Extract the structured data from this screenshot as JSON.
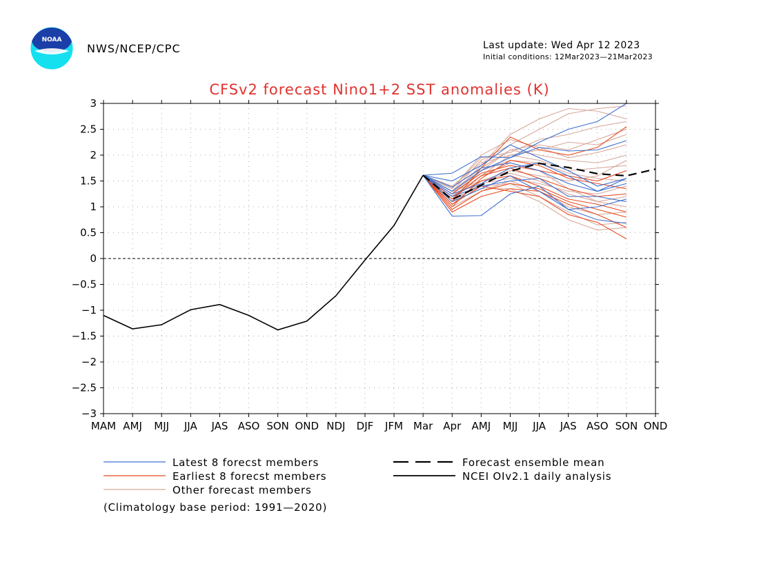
{
  "header": {
    "org": "NWS/NCEP/CPC",
    "last_update": "Last update: Wed Apr 12 2023",
    "initial_conditions": "Initial conditions: 12Mar2023—21Mar2023",
    "logo_text": "NOAA"
  },
  "colors": {
    "title": "#e0322e",
    "latest": "#3c6fd0",
    "earliest": "#e84a1e",
    "other": "#d6a79a",
    "observed": "#000000",
    "mean": "#000000",
    "logo_blue": "#1b3fa8",
    "logo_cyan": "#14e0f0"
  },
  "chart_data": {
    "type": "line",
    "title": "CFSv2 forecast Nino1+2 SST anomalies (K)",
    "xlabel": "",
    "ylabel": "",
    "categories": [
      "MAM",
      "AMJ",
      "MJJ",
      "JJA",
      "JAS",
      "ASO",
      "SON",
      "OND",
      "NDJ",
      "DJF",
      "JFM",
      "Mar",
      "Apr",
      "AMJ",
      "MJJ",
      "JJA",
      "JAS",
      "ASO",
      "SON",
      "OND"
    ],
    "ylim": [
      -3,
      3
    ],
    "yticks": [
      3,
      2.5,
      2,
      1.5,
      1,
      0.5,
      0,
      -0.5,
      -1,
      -1.5,
      -2,
      -2.5,
      -3
    ],
    "ytick_labels": [
      "3",
      "2.5",
      "2",
      "1.5",
      "1",
      "0.5",
      "0",
      "−0.5",
      "−1",
      "−1.5",
      "−2",
      "−2.5",
      "−3"
    ],
    "grid": true,
    "zero_line": true,
    "observed": {
      "name": "NCEI OIv2.1 daily analysis",
      "values": [
        -1.1,
        -1.36,
        -1.28,
        -0.99,
        -0.89,
        -1.1,
        -1.38,
        -1.21,
        -0.72,
        -0.03,
        0.64,
        1.61
      ]
    },
    "mean": {
      "name": "Forecast ensemble mean",
      "values": [
        1.61,
        1.14,
        1.42,
        1.69,
        1.84,
        1.76,
        1.64,
        1.6,
        1.73
      ]
    },
    "members": {
      "latest": [
        [
          1.61,
          1.65,
          1.97,
          1.95,
          2.25,
          2.5,
          2.65,
          3.0
        ],
        [
          1.61,
          1.3,
          1.7,
          1.95,
          2.15,
          2.08,
          2.1,
          2.28
        ],
        [
          1.61,
          1.25,
          1.45,
          1.75,
          1.85,
          1.6,
          1.3,
          1.55
        ],
        [
          1.61,
          1.2,
          1.4,
          1.5,
          1.55,
          1.2,
          1.2,
          1.1
        ],
        [
          1.61,
          1.1,
          1.35,
          1.6,
          1.3,
          0.95,
          1.0,
          1.15
        ],
        [
          1.61,
          0.82,
          0.83,
          1.25,
          1.4,
          0.95,
          0.75,
          0.68
        ],
        [
          1.61,
          1.38,
          1.75,
          1.85,
          1.7,
          1.45,
          1.3,
          1.45
        ],
        [
          1.61,
          1.5,
          1.8,
          2.2,
          1.95,
          1.7,
          1.4,
          1.55
        ]
      ],
      "earliest": [
        [
          1.61,
          1.1,
          1.75,
          2.35,
          2.1,
          2.0,
          2.15,
          2.55
        ],
        [
          1.61,
          1.0,
          1.55,
          1.9,
          1.8,
          1.55,
          1.45,
          1.35
        ],
        [
          1.61,
          1.15,
          1.6,
          1.75,
          1.55,
          1.35,
          1.2,
          1.25
        ],
        [
          1.61,
          0.95,
          1.3,
          1.45,
          1.35,
          1.1,
          0.95,
          0.8
        ],
        [
          1.61,
          1.05,
          1.4,
          1.3,
          1.2,
          0.85,
          0.7,
          0.38
        ],
        [
          1.61,
          1.2,
          1.5,
          1.6,
          1.4,
          1.15,
          1.05,
          0.9
        ],
        [
          1.61,
          0.9,
          1.2,
          1.35,
          1.3,
          1.05,
          0.85,
          0.6
        ],
        [
          1.61,
          1.25,
          1.65,
          1.8,
          1.7,
          1.6,
          1.5,
          1.7
        ]
      ],
      "other": [
        [
          1.61,
          1.3,
          1.9,
          2.2,
          2.5,
          2.8,
          2.9,
          2.95
        ],
        [
          1.61,
          1.25,
          1.8,
          2.4,
          2.7,
          2.9,
          2.85,
          2.7
        ],
        [
          1.61,
          1.35,
          1.95,
          2.05,
          2.3,
          2.4,
          2.55,
          2.65
        ],
        [
          1.61,
          1.2,
          1.6,
          2.0,
          2.1,
          2.25,
          2.2,
          2.4
        ],
        [
          1.61,
          1.15,
          1.7,
          2.1,
          2.0,
          1.9,
          1.85,
          2.0
        ],
        [
          1.61,
          1.3,
          1.5,
          1.7,
          1.6,
          1.5,
          1.6,
          1.9
        ],
        [
          1.61,
          1.1,
          1.45,
          1.55,
          1.45,
          1.3,
          1.25,
          1.4
        ],
        [
          1.61,
          1.0,
          1.3,
          1.5,
          1.3,
          1.0,
          0.85,
          0.9
        ],
        [
          1.61,
          1.2,
          1.6,
          1.85,
          1.7,
          1.35,
          1.1,
          1.0
        ],
        [
          1.61,
          1.4,
          1.85,
          2.0,
          1.9,
          1.7,
          1.75,
          1.8
        ],
        [
          1.61,
          1.15,
          1.4,
          1.45,
          1.2,
          0.9,
          0.65,
          0.7
        ],
        [
          1.61,
          1.05,
          1.5,
          1.65,
          1.5,
          1.25,
          1.1,
          1.2
        ],
        [
          1.61,
          1.25,
          1.7,
          1.9,
          1.85,
          1.65,
          1.55,
          1.5
        ],
        [
          1.61,
          1.35,
          2.0,
          2.3,
          2.15,
          1.95,
          2.05,
          2.2
        ],
        [
          1.61,
          1.1,
          1.35,
          1.35,
          1.1,
          0.75,
          0.55,
          0.6
        ],
        [
          1.61,
          1.3,
          1.75,
          2.1,
          2.2,
          2.1,
          2.3,
          2.5
        ]
      ]
    },
    "legend": {
      "placement": "bottom",
      "entries": [
        {
          "label": "Latest 8 forecst members",
          "style": "latest"
        },
        {
          "label": "Earliest 8 forecst members",
          "style": "earliest"
        },
        {
          "label": "Other forecast members",
          "style": "other"
        },
        {
          "label": "Forecast ensemble mean",
          "style": "mean"
        },
        {
          "label": "NCEI OIv2.1 daily analysis",
          "style": "observed"
        }
      ]
    },
    "annotation": "(Climatology base period: 1991—2020)"
  }
}
